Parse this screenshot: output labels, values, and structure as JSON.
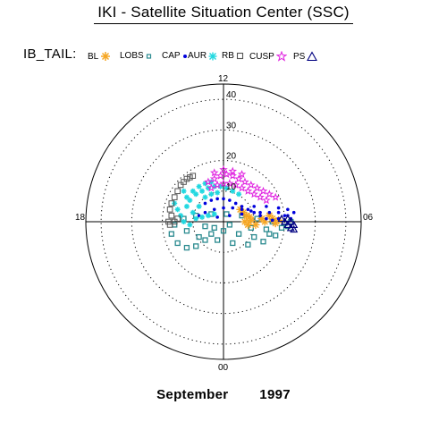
{
  "header": {
    "title": "IKI - Satellite Situation Center (SSC)"
  },
  "legend": {
    "name": "IB_TAIL:",
    "items": [
      {
        "label": "BL",
        "color": "#f5a623",
        "symbol": "asterisk"
      },
      {
        "label": "LOBS",
        "color": "#2a8a8f",
        "symbol": "square-small"
      },
      {
        "label": "CAP",
        "color": "#0000dd",
        "symbol": "dot"
      },
      {
        "label": "AUR",
        "color": "#20d8e0",
        "symbol": "asterisk"
      },
      {
        "label": "RB",
        "color": "#555555",
        "symbol": "square-open"
      },
      {
        "label": "CUSP",
        "color": "#e020e0",
        "symbol": "star"
      },
      {
        "label": "PS",
        "color": "#000080",
        "symbol": "triangle"
      }
    ]
  },
  "footer": {
    "month": "September",
    "year": "1997"
  },
  "chart_data": {
    "type": "scatter",
    "coordinate_system": "polar",
    "angle_labels": [
      "12",
      "18",
      "00",
      "06"
    ],
    "radial_ticks": [
      10,
      20,
      30,
      40
    ],
    "radial_max": 45,
    "grid": "dotted circles",
    "series": [
      {
        "name": "LOBS",
        "color": "#2a8a8f",
        "note": "dense loops on dawn-midnight side",
        "points": [
          [
            -3,
            -2
          ],
          [
            -4,
            -4
          ],
          [
            -6,
            -6
          ],
          [
            -9,
            -8
          ],
          [
            -12,
            -8.5
          ],
          [
            -15,
            -7
          ],
          [
            -17,
            -4
          ],
          [
            -16,
            -1
          ],
          [
            -13,
            1
          ],
          [
            -9,
            2
          ],
          [
            -4,
            2.5
          ],
          [
            1,
            2.5
          ],
          [
            6,
            2
          ],
          [
            11,
            1
          ],
          [
            16,
            0
          ],
          [
            20,
            -0.5
          ],
          [
            0,
            -3
          ],
          [
            5,
            -4
          ],
          [
            10,
            -5
          ],
          [
            15,
            -4
          ],
          [
            19,
            -2
          ],
          [
            -8,
            -5
          ],
          [
            -2,
            -6
          ],
          [
            3,
            -7
          ],
          [
            8,
            -7.5
          ],
          [
            13,
            -6.5
          ],
          [
            17,
            -4.5
          ],
          [
            -12,
            -3
          ],
          [
            -6,
            -1.5
          ],
          [
            2,
            -1
          ],
          [
            9,
            -2
          ],
          [
            14,
            -2.5
          ],
          [
            21,
            -1.5
          ],
          [
            22,
            0
          ]
        ]
      },
      {
        "name": "BL",
        "color": "#f5a623",
        "points": [
          [
            5.5,
            4
          ],
          [
            6.5,
            3
          ],
          [
            7.5,
            2
          ],
          [
            8.5,
            1.5
          ],
          [
            9,
            0.5
          ],
          [
            10.5,
            -1
          ],
          [
            12.5,
            1
          ],
          [
            13.5,
            0
          ],
          [
            15,
            2
          ],
          [
            16,
            1
          ],
          [
            17,
            -0.5
          ],
          [
            18,
            0.5
          ],
          [
            7,
            0
          ],
          [
            8,
            -1
          ]
        ]
      },
      {
        "name": "CAP",
        "color": "#0000dd",
        "points": [
          [
            -6,
            6
          ],
          [
            -4,
            7
          ],
          [
            -2,
            7.5
          ],
          [
            0,
            7.5
          ],
          [
            2,
            7
          ],
          [
            4,
            6
          ],
          [
            6,
            5
          ],
          [
            8,
            4
          ],
          [
            10,
            3
          ],
          [
            12,
            2
          ],
          [
            14,
            1
          ],
          [
            16,
            0.5
          ],
          [
            18,
            1
          ],
          [
            20,
            2
          ],
          [
            -8,
            2
          ],
          [
            -6,
            3
          ],
          [
            -3,
            4
          ],
          [
            0,
            4.5
          ],
          [
            3,
            4.5
          ],
          [
            6,
            4
          ],
          [
            9,
            3.5
          ],
          [
            12,
            3
          ],
          [
            15,
            3
          ],
          [
            18,
            3
          ],
          [
            21,
            2
          ],
          [
            22,
            1
          ],
          [
            -2,
            1.5
          ],
          [
            2,
            2
          ],
          [
            6,
            2.5
          ],
          [
            10,
            5
          ],
          [
            14,
            5
          ],
          [
            18,
            4.5
          ],
          [
            21,
            4
          ],
          [
            23,
            3
          ]
        ]
      },
      {
        "name": "AUR",
        "color": "#20d8e0",
        "points": [
          [
            -12,
            5
          ],
          [
            -11,
            7
          ],
          [
            -9,
            9
          ],
          [
            -7,
            10
          ],
          [
            -5,
            11
          ],
          [
            -3,
            11.5
          ],
          [
            -1,
            11.5
          ],
          [
            1,
            11
          ],
          [
            3,
            10
          ],
          [
            5,
            9
          ],
          [
            -14,
            2
          ],
          [
            -13,
            0
          ],
          [
            -15,
            4
          ],
          [
            -10,
            3
          ],
          [
            -8,
            5
          ],
          [
            -6,
            8
          ],
          [
            -4,
            9
          ],
          [
            -2,
            9.5
          ],
          [
            -12,
            8
          ],
          [
            -10,
            10
          ],
          [
            -8,
            11.5
          ],
          [
            -6,
            12.5
          ],
          [
            -4,
            13
          ],
          [
            -16,
            6
          ],
          [
            -11,
            -1
          ],
          [
            -9,
            1
          ],
          [
            -7,
            1.5
          ],
          [
            -5,
            2
          ],
          [
            -3,
            2.5
          ],
          [
            -13,
            10
          ]
        ]
      },
      {
        "name": "RB",
        "color": "#555555",
        "points": [
          [
            -17,
            2
          ],
          [
            -17.5,
            4
          ],
          [
            -17,
            6
          ],
          [
            -16,
            8
          ],
          [
            -15,
            10
          ],
          [
            -14,
            12
          ],
          [
            -13,
            13
          ],
          [
            -12,
            14
          ],
          [
            -11,
            14.5
          ],
          [
            -10,
            15
          ],
          [
            -18,
            0
          ],
          [
            -17.5,
            -1
          ],
          [
            -16,
            0
          ],
          [
            -15,
            1
          ]
        ]
      },
      {
        "name": "CUSP",
        "color": "#e020e0",
        "points": [
          [
            -5,
            13
          ],
          [
            -3,
            14
          ],
          [
            -1,
            15
          ],
          [
            1,
            15.5
          ],
          [
            3,
            15
          ],
          [
            5,
            14
          ],
          [
            7,
            13
          ],
          [
            9,
            12
          ],
          [
            11,
            11
          ],
          [
            13,
            10
          ],
          [
            15,
            9
          ],
          [
            17,
            8
          ],
          [
            -4,
            11
          ],
          [
            -2,
            12
          ],
          [
            0,
            12.5
          ],
          [
            2,
            12.5
          ],
          [
            4,
            12
          ],
          [
            6,
            11
          ],
          [
            8,
            10
          ],
          [
            10,
            9
          ],
          [
            12,
            8
          ],
          [
            14,
            7
          ],
          [
            -3,
            16
          ],
          [
            0,
            17
          ],
          [
            3,
            16.5
          ],
          [
            6,
            15.5
          ]
        ]
      },
      {
        "name": "PS",
        "color": "#000080",
        "points": [
          [
            19,
            1
          ],
          [
            20,
            0
          ],
          [
            21,
            -1
          ],
          [
            22,
            -2
          ],
          [
            23,
            -2.5
          ],
          [
            21,
            1
          ],
          [
            22,
            0
          ],
          [
            23,
            -1
          ]
        ]
      }
    ]
  }
}
